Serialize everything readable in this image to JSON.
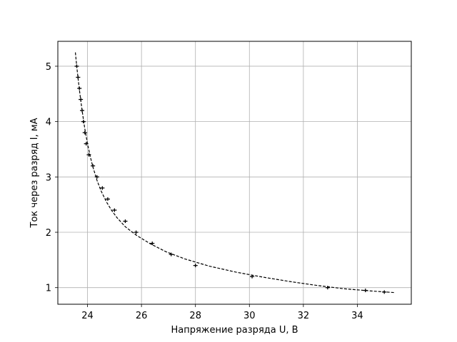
{
  "chart_data": {
    "type": "scatter",
    "title": "",
    "xlabel": "Напряжение разряда U, В",
    "ylabel": "Ток через разряд I, мА",
    "xlim": [
      22.9,
      36.0
    ],
    "ylim": [
      0.7,
      5.45
    ],
    "xticks": [
      24,
      26,
      28,
      30,
      32,
      34
    ],
    "yticks": [
      1,
      2,
      3,
      4,
      5
    ],
    "xtick_labels": [
      "24",
      "26",
      "28",
      "30",
      "32",
      "34"
    ],
    "ytick_labels": [
      "1",
      "2",
      "3",
      "4",
      "5"
    ],
    "grid": true,
    "legend": "none",
    "series": [
      {
        "marker": "errorbar",
        "color": "#000000",
        "x": [
          23.6,
          23.65,
          23.7,
          23.75,
          23.8,
          23.85,
          23.9,
          23.95,
          24.05,
          24.2,
          24.35,
          24.55,
          24.75,
          25.0,
          25.4,
          25.8,
          26.4,
          27.1,
          28.0,
          30.1,
          32.9,
          34.3,
          35.0
        ],
        "y": [
          5.0,
          4.8,
          4.6,
          4.4,
          4.2,
          4.0,
          3.8,
          3.6,
          3.4,
          3.2,
          3.0,
          2.8,
          2.6,
          2.4,
          2.2,
          2.0,
          1.8,
          1.6,
          1.4,
          1.2,
          1.0,
          0.95,
          0.92
        ],
        "xerr": 0.08
      },
      {
        "marker": "none",
        "line_style": "dashed",
        "color": "#000000",
        "x": [
          23.55,
          23.6,
          23.65,
          23.7,
          23.75,
          23.8,
          23.85,
          23.9,
          24.0,
          24.1,
          24.2,
          24.35,
          24.5,
          24.7,
          24.9,
          25.1,
          25.4,
          25.8,
          26.3,
          26.9,
          27.6,
          28.5,
          29.5,
          30.5,
          31.5,
          32.5,
          33.5,
          34.5,
          35.4
        ],
        "y": [
          5.25,
          5.0,
          4.78,
          4.57,
          4.38,
          4.2,
          4.03,
          3.87,
          3.6,
          3.37,
          3.18,
          2.94,
          2.75,
          2.55,
          2.39,
          2.26,
          2.1,
          1.95,
          1.8,
          1.65,
          1.52,
          1.39,
          1.28,
          1.19,
          1.11,
          1.04,
          0.98,
          0.94,
          0.91
        ]
      }
    ]
  }
}
